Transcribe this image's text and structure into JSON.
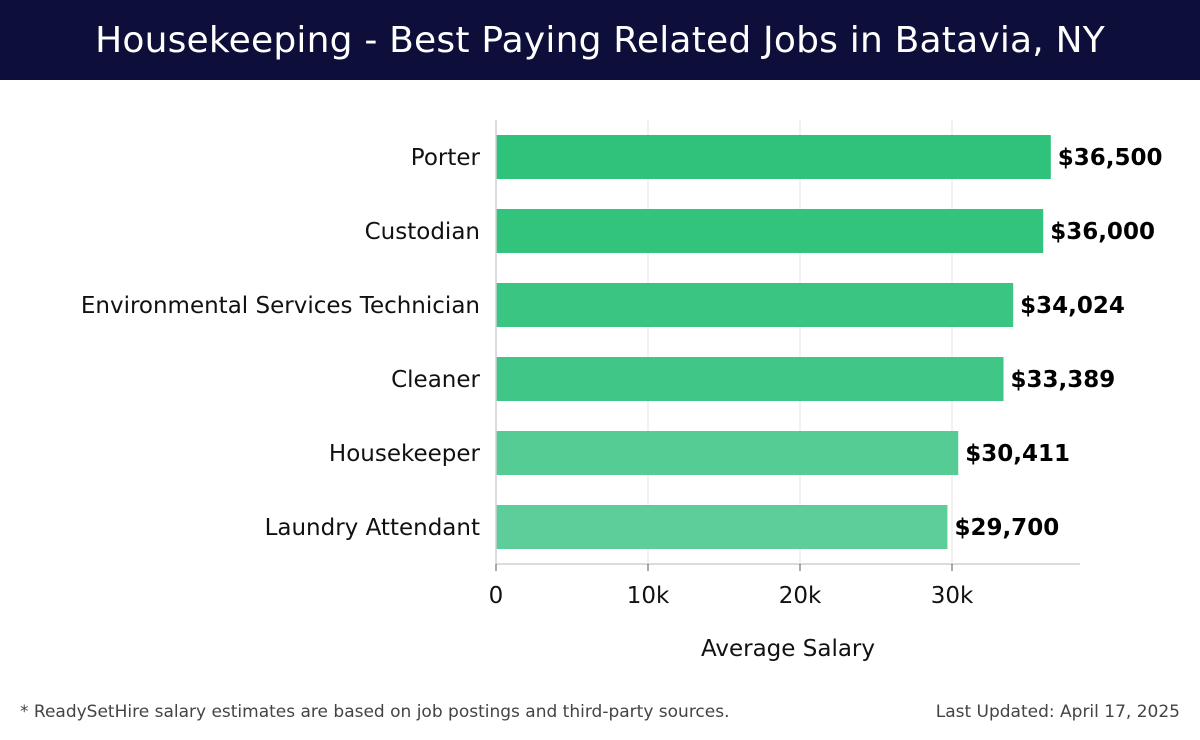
{
  "header": {
    "title": "Housekeeping - Best Paying Related Jobs in Batavia, NY"
  },
  "footer": {
    "note": "* ReadySetHire salary estimates are based on job postings and third-party sources.",
    "updated": "Last Updated: April 17, 2025"
  },
  "chart_data": {
    "type": "bar",
    "orientation": "horizontal",
    "title": "Housekeeping - Best Paying Related Jobs in Batavia, NY",
    "xlabel": "Average Salary",
    "ylabel": "",
    "categories": [
      "Porter",
      "Custodian",
      "Environmental Services Technician",
      "Cleaner",
      "Housekeeper",
      "Laundry Attendant"
    ],
    "values": [
      36500,
      36000,
      34024,
      33389,
      30411,
      29700
    ],
    "value_labels": [
      "$36,500",
      "$36,000",
      "$34,024",
      "$33,389",
      "$30,411",
      "$29,700"
    ],
    "xticks": [
      0,
      10000,
      20000,
      30000
    ],
    "xtick_labels": [
      "0",
      "10k",
      "20k",
      "30k"
    ],
    "xlim": [
      0,
      38500
    ],
    "grid": "vertical",
    "colors": [
      "#2ec27a",
      "#32c47d",
      "#3ac583",
      "#40c787",
      "#55cc94",
      "#5dce99"
    ]
  }
}
